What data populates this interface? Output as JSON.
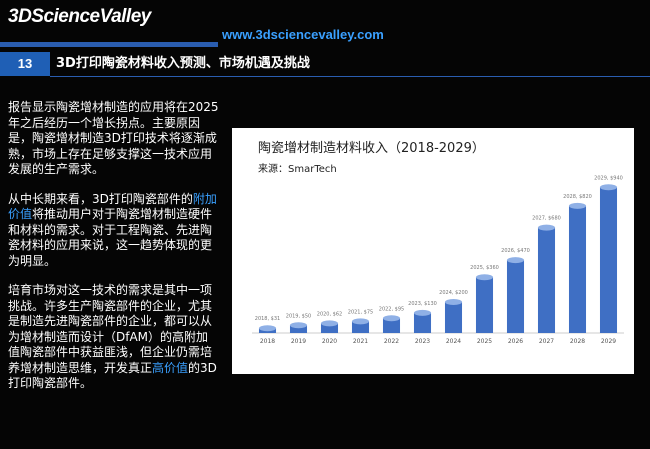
{
  "header": {
    "logo": "3DScienceValley",
    "url": "www.3dsciencevalley.com"
  },
  "slide": {
    "number": "13",
    "title": "3D打印陶瓷材料收入预测、市场机遇及挑战"
  },
  "paragraphs": [
    [
      {
        "text": "报告显示陶瓷增材制造的应用将在2025年之后经历一个增长拐点。主要原因是，陶瓷增材制造3D打印技术将逐渐成熟，市场上存在足够支撑这一技术应用发展的生产需求。",
        "highlight": false
      }
    ],
    [
      {
        "text": "从中长期来看，3D打印陶瓷部件的",
        "highlight": false
      },
      {
        "text": "附加价值",
        "highlight": true
      },
      {
        "text": "将推动用户对于陶瓷增材制造硬件和材料的需求。对于工程陶瓷、先进陶瓷材料的应用来说，这一趋势体现的更为明显。",
        "highlight": false
      }
    ],
    [
      {
        "text": "培育市场对这一技术的需求是其中一项挑战。许多生产陶瓷部件的企业，尤其是制造先进陶瓷部件的企业，都可以从为增材制造而设计（DfAM）的高附加值陶瓷部件中获益匪浅，但企业仍需培养增材制造思维，开发真正",
        "highlight": false
      },
      {
        "text": "高价值",
        "highlight": true
      },
      {
        "text": "的3D打印陶瓷部件。",
        "highlight": false
      }
    ]
  ],
  "chart_data": {
    "type": "bar",
    "title": "陶瓷增材制造材料收入（2018-2029）",
    "subtitle": "来源：SmarTech",
    "categories": [
      "2018",
      "2019",
      "2020",
      "2021",
      "2022",
      "2023",
      "2024",
      "2025",
      "2026",
      "2027",
      "2028",
      "2029"
    ],
    "values": [
      31,
      50,
      62,
      75,
      95,
      130,
      200,
      360,
      470,
      680,
      820,
      940
    ],
    "value_labels": [
      "2018, $31",
      "2019, $50",
      "2020, $62",
      "2021, $75",
      "2022, $95",
      "2023, $130",
      "2024, $200",
      "2025, $360",
      "2026, $470",
      "2027, $680",
      "2028, $820",
      "2029, $940"
    ],
    "color": "#3f6fc4",
    "ylim": [
      0,
      1000
    ]
  }
}
